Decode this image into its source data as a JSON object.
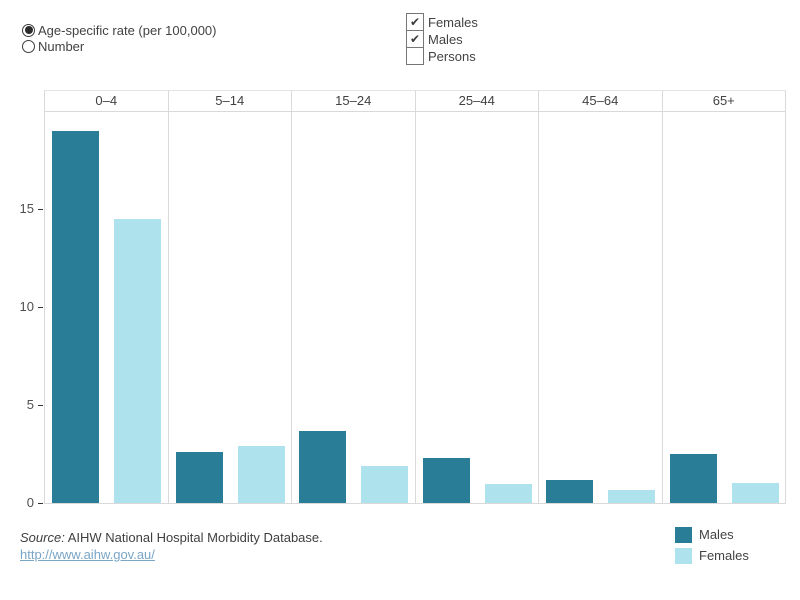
{
  "controls": {
    "measure_radio": {
      "options": [
        {
          "label": "Age-specific rate (per 100,000)",
          "selected": true
        },
        {
          "label": "Number",
          "selected": false
        }
      ]
    },
    "series_filter": {
      "check_glyph": "✔",
      "options": [
        {
          "label": "Females",
          "checked": true
        },
        {
          "label": "Males",
          "checked": true
        },
        {
          "label": "Persons",
          "checked": false
        }
      ]
    }
  },
  "chart_data": {
    "type": "bar",
    "title": "",
    "xlabel": "",
    "ylabel": "Age-specific rate (per 100,000)",
    "categories": [
      "0–4",
      "5–14",
      "15–24",
      "25–44",
      "45–64",
      "65+"
    ],
    "series": [
      {
        "name": "Males",
        "color": "#2a7d96",
        "values": [
          19.0,
          2.6,
          3.7,
          2.3,
          1.2,
          2.5
        ]
      },
      {
        "name": "Females",
        "color": "#aee3ee",
        "values": [
          14.5,
          2.9,
          1.9,
          0.95,
          0.65,
          1.0
        ]
      }
    ],
    "ylim": [
      0,
      20
    ],
    "yticks": [
      0,
      5,
      10,
      15
    ],
    "grid": false,
    "legend_position": "bottom-right"
  },
  "legend": {
    "items": [
      {
        "label": "Males",
        "color": "#2a7d96"
      },
      {
        "label": "Females",
        "color": "#aee3ee"
      }
    ]
  },
  "footer": {
    "source_prefix": "Source:",
    "source_text": " AIHW National Hospital Morbidity Database.",
    "link_text": "http://www.aihw.gov.au/"
  },
  "colors": {
    "males": "#2a7d96",
    "females": "#aee3ee",
    "grid_border": "#d9d9d9",
    "link": "#79a5c6"
  }
}
